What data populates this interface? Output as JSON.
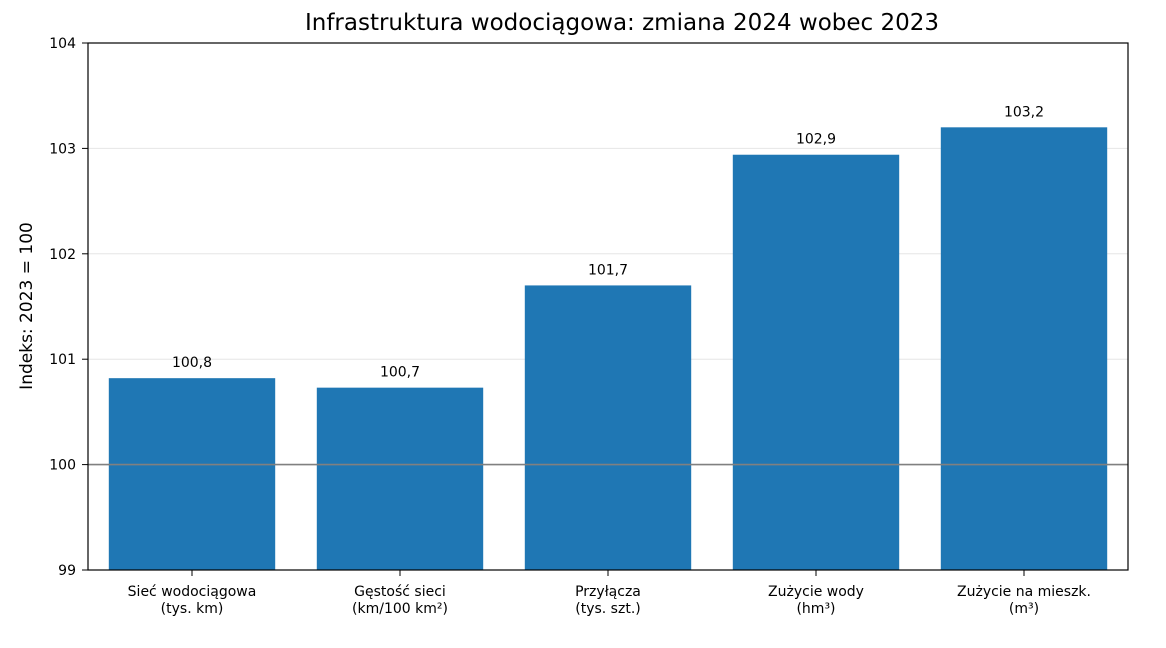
{
  "chart_data": {
    "type": "bar",
    "title": "Infrastruktura wodociągowa: zmiana 2024 wobec 2023",
    "xlabel": "",
    "ylabel": "Indeks: 2023 = 100",
    "ylim": [
      99,
      104
    ],
    "yticks": [
      "99",
      "100",
      "101",
      "102",
      "103",
      "104"
    ],
    "yticks_values": [
      99,
      100,
      101,
      102,
      103,
      104
    ],
    "baseline": 100,
    "grid": "horizontal",
    "categories": [
      [
        "Sieć wodociągowa",
        "(tys. km)"
      ],
      [
        "Gęstość sieci",
        "(km/100 km²)"
      ],
      [
        "Przyłącza",
        "(tys. szt.)"
      ],
      [
        "Zużycie wody",
        "(hm³)"
      ],
      [
        "Zużycie na mieszk.",
        "(m³)"
      ]
    ],
    "values": [
      100.82,
      100.73,
      101.7,
      102.94,
      103.2
    ],
    "data_labels": [
      "100,8",
      "100,7",
      "101,7",
      "102,9",
      "103,2"
    ],
    "colors": {
      "bar": "#1f77b4",
      "baseline": "#808080",
      "grid": "#e6e6e6"
    }
  }
}
